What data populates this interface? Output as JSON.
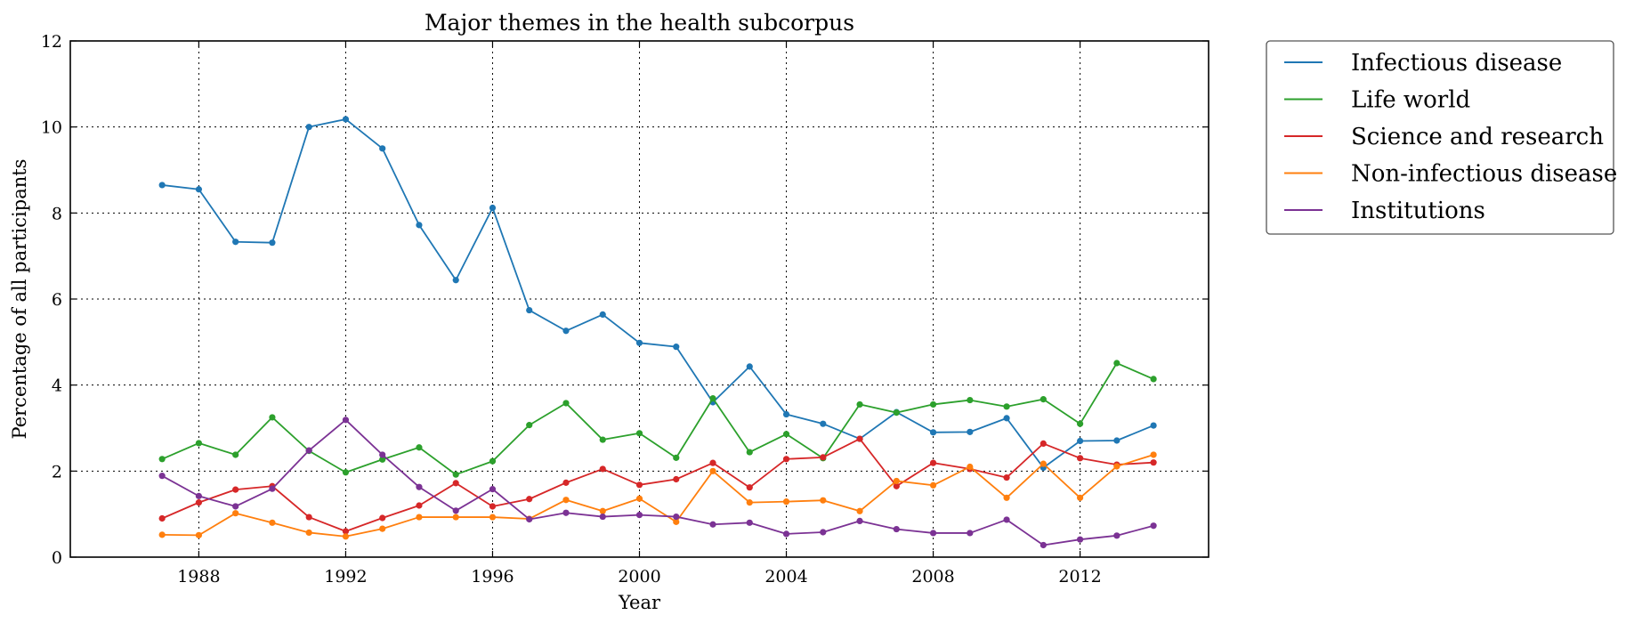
{
  "chart_data": {
    "type": "line",
    "title": "Major themes in the health subcorpus",
    "xlabel": "Year",
    "ylabel": "Percentage of all participants",
    "xlim": [
      1984.5,
      2015.5
    ],
    "ylim": [
      0,
      12
    ],
    "xticks": [
      1988,
      1992,
      1996,
      2000,
      2004,
      2008,
      2012
    ],
    "yticks": [
      0,
      2,
      4,
      6,
      8,
      10,
      12
    ],
    "grid": true,
    "legend_position": "outside-top-right",
    "x": [
      1987,
      1988,
      1989,
      1990,
      1991,
      1992,
      1993,
      1994,
      1995,
      1996,
      1997,
      1998,
      1999,
      2000,
      2001,
      2002,
      2003,
      2004,
      2005,
      2006,
      2007,
      2008,
      2009,
      2010,
      2011,
      2012,
      2013,
      2014
    ],
    "series": [
      {
        "name": "Infectious disease",
        "color": "#1f77b4",
        "values": [
          8.65,
          8.55,
          7.33,
          7.31,
          10.0,
          10.18,
          9.5,
          7.72,
          6.44,
          8.12,
          5.74,
          5.26,
          5.64,
          4.98,
          4.89,
          3.6,
          4.43,
          3.32,
          3.1,
          2.75,
          3.37,
          2.9,
          2.91,
          3.23,
          2.08,
          2.7,
          2.71,
          3.06
        ]
      },
      {
        "name": "Life world",
        "color": "#2ca02c",
        "values": [
          2.28,
          2.65,
          2.38,
          3.25,
          2.47,
          1.97,
          2.27,
          2.55,
          1.92,
          2.23,
          3.07,
          3.58,
          2.73,
          2.88,
          2.31,
          3.69,
          2.44,
          2.86,
          2.3,
          3.55,
          3.36,
          3.55,
          3.65,
          3.5,
          3.67,
          3.1,
          4.51,
          4.14
        ]
      },
      {
        "name": "Science and research",
        "color": "#d62728",
        "values": [
          0.9,
          1.27,
          1.57,
          1.65,
          0.93,
          0.6,
          0.91,
          1.2,
          1.72,
          1.18,
          1.35,
          1.73,
          2.05,
          1.68,
          1.81,
          2.19,
          1.62,
          2.28,
          2.32,
          2.75,
          1.65,
          2.19,
          2.05,
          1.85,
          2.64,
          2.3,
          2.15,
          2.2
        ]
      },
      {
        "name": "Non-infectious disease",
        "color": "#ff7f0e",
        "values": [
          0.52,
          0.51,
          1.02,
          0.8,
          0.57,
          0.48,
          0.66,
          0.93,
          0.93,
          0.93,
          0.89,
          1.33,
          1.07,
          1.36,
          0.82,
          2.0,
          1.27,
          1.29,
          1.32,
          1.07,
          1.77,
          1.67,
          2.1,
          1.38,
          2.17,
          1.38,
          2.11,
          2.38
        ]
      },
      {
        "name": "Institutions",
        "color": "#7b3294",
        "values": [
          1.89,
          1.42,
          1.18,
          1.59,
          2.48,
          3.19,
          2.38,
          1.63,
          1.08,
          1.58,
          0.88,
          1.03,
          0.94,
          0.98,
          0.94,
          0.76,
          0.8,
          0.54,
          0.58,
          0.84,
          0.65,
          0.56,
          0.56,
          0.87,
          0.28,
          0.41,
          0.5,
          0.73
        ]
      }
    ]
  }
}
